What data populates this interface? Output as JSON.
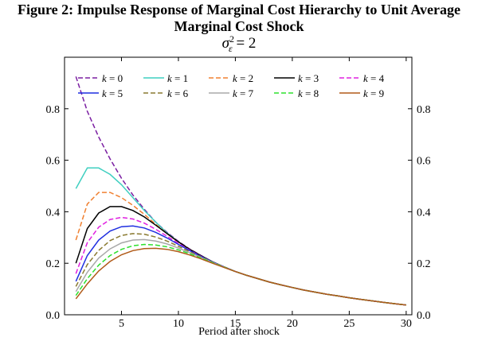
{
  "figure": {
    "title_line1": "Figure 2: Impulse Response of Marginal Cost Hierarchy to Unit Average",
    "title_line2": "Marginal Cost Shock",
    "subtitle_sigma": "σ",
    "subtitle_sup": "2",
    "subtitle_sub": "ε",
    "subtitle_rest": " = 2"
  },
  "chart_data": {
    "type": "line",
    "xlabel": "Period after shock",
    "ylabel": "",
    "xlim": [
      0,
      30.5
    ],
    "ylim": [
      0,
      1
    ],
    "xticks": [
      5,
      10,
      15,
      20,
      25,
      30
    ],
    "yticks": [
      0.0,
      0.2,
      0.4,
      0.6,
      0.8
    ],
    "ytick_labels": [
      "0.0",
      "0.2",
      "0.4",
      "0.6",
      "0.8"
    ],
    "right_axis_labels": true,
    "legend_position": "top",
    "series": [
      {
        "name": "k = 0",
        "color": "#7b1fa2",
        "dash": "6,3",
        "x": [
          1,
          2,
          3,
          4,
          5,
          6,
          7,
          8,
          9,
          10,
          11,
          12,
          13,
          14,
          15,
          16,
          17,
          18,
          19,
          20,
          21,
          22,
          23,
          24,
          25,
          26,
          27,
          28,
          29,
          30
        ],
        "y": [
          0.925,
          0.79,
          0.69,
          0.605,
          0.53,
          0.465,
          0.41,
          0.36,
          0.32,
          0.285,
          0.255,
          0.23,
          0.205,
          0.185,
          0.168,
          0.153,
          0.14,
          0.127,
          0.116,
          0.106,
          0.096,
          0.088,
          0.08,
          0.073,
          0.066,
          0.06,
          0.054,
          0.048,
          0.043,
          0.038
        ]
      },
      {
        "name": "k = 1",
        "color": "#3fcfc0",
        "dash": "",
        "x": [
          1,
          2,
          3,
          4,
          5,
          6,
          7,
          8,
          9,
          10,
          11,
          12,
          13,
          14,
          15,
          16,
          17,
          18,
          19,
          20,
          21,
          22,
          23,
          24,
          25,
          26,
          27,
          28,
          29,
          30
        ],
        "y": [
          0.49,
          0.57,
          0.57,
          0.545,
          0.505,
          0.455,
          0.405,
          0.36,
          0.318,
          0.283,
          0.253,
          0.228,
          0.205,
          0.185,
          0.168,
          0.153,
          0.14,
          0.127,
          0.116,
          0.106,
          0.096,
          0.088,
          0.08,
          0.073,
          0.066,
          0.06,
          0.054,
          0.048,
          0.043,
          0.038
        ]
      },
      {
        "name": "k = 2",
        "color": "#f08030",
        "dash": "6,3",
        "x": [
          1,
          2,
          3,
          4,
          5,
          6,
          7,
          8,
          9,
          10,
          11,
          12,
          13,
          14,
          15,
          16,
          17,
          18,
          19,
          20,
          21,
          22,
          23,
          24,
          25,
          26,
          27,
          28,
          29,
          30
        ],
        "y": [
          0.29,
          0.43,
          0.475,
          0.475,
          0.455,
          0.425,
          0.39,
          0.352,
          0.315,
          0.282,
          0.253,
          0.228,
          0.205,
          0.185,
          0.168,
          0.153,
          0.14,
          0.127,
          0.116,
          0.106,
          0.096,
          0.088,
          0.08,
          0.073,
          0.066,
          0.06,
          0.054,
          0.048,
          0.043,
          0.038
        ]
      },
      {
        "name": "k = 3",
        "color": "#000000",
        "dash": "",
        "x": [
          1,
          2,
          3,
          4,
          5,
          6,
          7,
          8,
          9,
          10,
          11,
          12,
          13,
          14,
          15,
          16,
          17,
          18,
          19,
          20,
          21,
          22,
          23,
          24,
          25,
          26,
          27,
          28,
          29,
          30
        ],
        "y": [
          0.2,
          0.335,
          0.395,
          0.42,
          0.42,
          0.405,
          0.38,
          0.348,
          0.315,
          0.283,
          0.254,
          0.229,
          0.206,
          0.186,
          0.168,
          0.153,
          0.14,
          0.127,
          0.116,
          0.106,
          0.096,
          0.088,
          0.08,
          0.073,
          0.066,
          0.06,
          0.054,
          0.048,
          0.043,
          0.038
        ]
      },
      {
        "name": "k = 4",
        "color": "#e020e0",
        "dash": "6,3",
        "x": [
          1,
          2,
          3,
          4,
          5,
          6,
          7,
          8,
          9,
          10,
          11,
          12,
          13,
          14,
          15,
          16,
          17,
          18,
          19,
          20,
          21,
          22,
          23,
          24,
          25,
          26,
          27,
          28,
          29,
          30
        ],
        "y": [
          0.16,
          0.28,
          0.34,
          0.37,
          0.378,
          0.372,
          0.356,
          0.332,
          0.305,
          0.277,
          0.251,
          0.227,
          0.205,
          0.186,
          0.168,
          0.153,
          0.14,
          0.127,
          0.116,
          0.106,
          0.096,
          0.088,
          0.08,
          0.073,
          0.066,
          0.06,
          0.054,
          0.048,
          0.043,
          0.038
        ]
      },
      {
        "name": "k = 5",
        "color": "#1f2fe0",
        "dash": "",
        "x": [
          1,
          2,
          3,
          4,
          5,
          6,
          7,
          8,
          9,
          10,
          11,
          12,
          13,
          14,
          15,
          16,
          17,
          18,
          19,
          20,
          21,
          22,
          23,
          24,
          25,
          26,
          27,
          28,
          29,
          30
        ],
        "y": [
          0.13,
          0.23,
          0.29,
          0.325,
          0.342,
          0.345,
          0.337,
          0.32,
          0.298,
          0.273,
          0.249,
          0.226,
          0.205,
          0.186,
          0.168,
          0.153,
          0.14,
          0.127,
          0.116,
          0.106,
          0.096,
          0.088,
          0.08,
          0.073,
          0.066,
          0.06,
          0.054,
          0.048,
          0.043,
          0.038
        ]
      },
      {
        "name": "k = 6",
        "color": "#8a7a30",
        "dash": "6,3",
        "x": [
          1,
          2,
          3,
          4,
          5,
          6,
          7,
          8,
          9,
          10,
          11,
          12,
          13,
          14,
          15,
          16,
          17,
          18,
          19,
          20,
          21,
          22,
          23,
          24,
          25,
          26,
          27,
          28,
          29,
          30
        ],
        "y": [
          0.11,
          0.195,
          0.25,
          0.288,
          0.308,
          0.315,
          0.313,
          0.302,
          0.286,
          0.266,
          0.245,
          0.224,
          0.204,
          0.186,
          0.168,
          0.153,
          0.14,
          0.127,
          0.116,
          0.106,
          0.096,
          0.088,
          0.08,
          0.073,
          0.066,
          0.06,
          0.054,
          0.048,
          0.043,
          0.038
        ]
      },
      {
        "name": "k = 7",
        "color": "#a8a8a8",
        "dash": "",
        "x": [
          1,
          2,
          3,
          4,
          5,
          6,
          7,
          8,
          9,
          10,
          11,
          12,
          13,
          14,
          15,
          16,
          17,
          18,
          19,
          20,
          21,
          22,
          23,
          24,
          25,
          26,
          27,
          28,
          29,
          30
        ],
        "y": [
          0.09,
          0.165,
          0.22,
          0.256,
          0.279,
          0.29,
          0.292,
          0.286,
          0.275,
          0.259,
          0.241,
          0.222,
          0.203,
          0.185,
          0.168,
          0.153,
          0.14,
          0.127,
          0.116,
          0.106,
          0.096,
          0.088,
          0.08,
          0.073,
          0.066,
          0.06,
          0.054,
          0.048,
          0.043,
          0.038
        ]
      },
      {
        "name": "k = 8",
        "color": "#2ee02e",
        "dash": "6,3",
        "x": [
          1,
          2,
          3,
          4,
          5,
          6,
          7,
          8,
          9,
          10,
          11,
          12,
          13,
          14,
          15,
          16,
          17,
          18,
          19,
          20,
          21,
          22,
          23,
          24,
          25,
          26,
          27,
          28,
          29,
          30
        ],
        "y": [
          0.075,
          0.14,
          0.193,
          0.23,
          0.254,
          0.268,
          0.273,
          0.271,
          0.264,
          0.252,
          0.237,
          0.22,
          0.202,
          0.185,
          0.168,
          0.153,
          0.14,
          0.127,
          0.116,
          0.106,
          0.096,
          0.088,
          0.08,
          0.073,
          0.066,
          0.06,
          0.054,
          0.048,
          0.043,
          0.038
        ]
      },
      {
        "name": "k = 9",
        "color": "#b05a18",
        "dash": "",
        "x": [
          1,
          2,
          3,
          4,
          5,
          6,
          7,
          8,
          9,
          10,
          11,
          12,
          13,
          14,
          15,
          16,
          17,
          18,
          19,
          20,
          21,
          22,
          23,
          24,
          25,
          26,
          27,
          28,
          29,
          30
        ],
        "y": [
          0.062,
          0.12,
          0.17,
          0.207,
          0.233,
          0.249,
          0.257,
          0.258,
          0.254,
          0.245,
          0.232,
          0.217,
          0.2,
          0.184,
          0.168,
          0.153,
          0.14,
          0.127,
          0.116,
          0.106,
          0.096,
          0.088,
          0.08,
          0.073,
          0.066,
          0.06,
          0.054,
          0.048,
          0.043,
          0.038
        ]
      }
    ]
  }
}
